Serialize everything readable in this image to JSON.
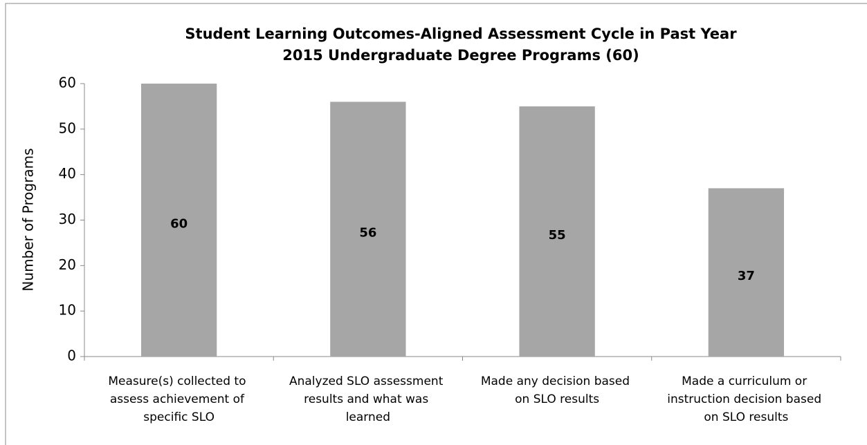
{
  "chart_data": {
    "type": "bar",
    "title": "Student Learning Outcomes-Aligned Assessment Cycle in Past Year",
    "subtitle": "2015 Undergraduate Degree Programs (60)",
    "y_label": "Number of Programs",
    "categories": [
      "Measure(s) collected to assess achievement of specific SLO",
      "Analyzed SLO assessment results and what was learned",
      "Made any decision based on SLO results",
      "Made a curriculum or instruction decision based on SLO results"
    ],
    "values": [
      60,
      56,
      55,
      37
    ],
    "color": "#a6a6a6",
    "ylim": [
      0,
      60
    ],
    "yticks": [
      0,
      10,
      20,
      30,
      40,
      50,
      60
    ],
    "grid": false
  }
}
